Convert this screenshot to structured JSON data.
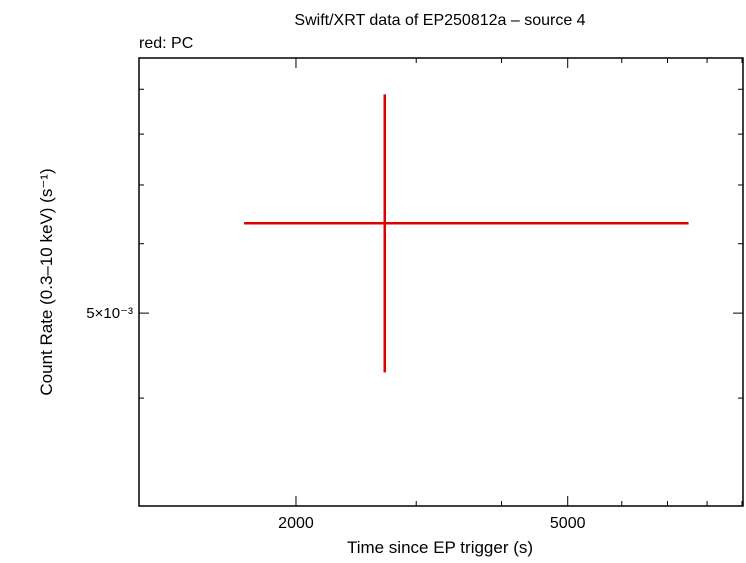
{
  "chart_data": {
    "type": "errorbar",
    "title": "Swift/XRT data of EP250812a – source 4",
    "subtitle": "red: PC",
    "x_label": "Time since EP trigger (s)",
    "y_label": "Count Rate (0.3–10 keV) (s⁻¹)",
    "log_x": true,
    "log_y": true,
    "xlim": [
      1178,
      9030
    ],
    "ylim": [
      0.003013,
      0.00977
    ],
    "xticks": [
      2000,
      5000
    ],
    "xminor": [
      3000,
      4000,
      6000,
      7000,
      8000,
      9000
    ],
    "yticks": [
      {
        "value": 0.005,
        "label": "5×10⁻³"
      }
    ],
    "yminor": [
      0.004,
      0.006,
      0.007,
      0.008,
      0.009
    ],
    "series": [
      {
        "name": "PC",
        "color": "#e00000",
        "x": [
          2698
        ],
        "x_lo": [
          1679
        ],
        "x_hi": [
          7516
        ],
        "values": [
          0.00633
        ],
        "y_lo": [
          0.00428
        ],
        "y_hi": [
          0.00888
        ]
      }
    ]
  }
}
